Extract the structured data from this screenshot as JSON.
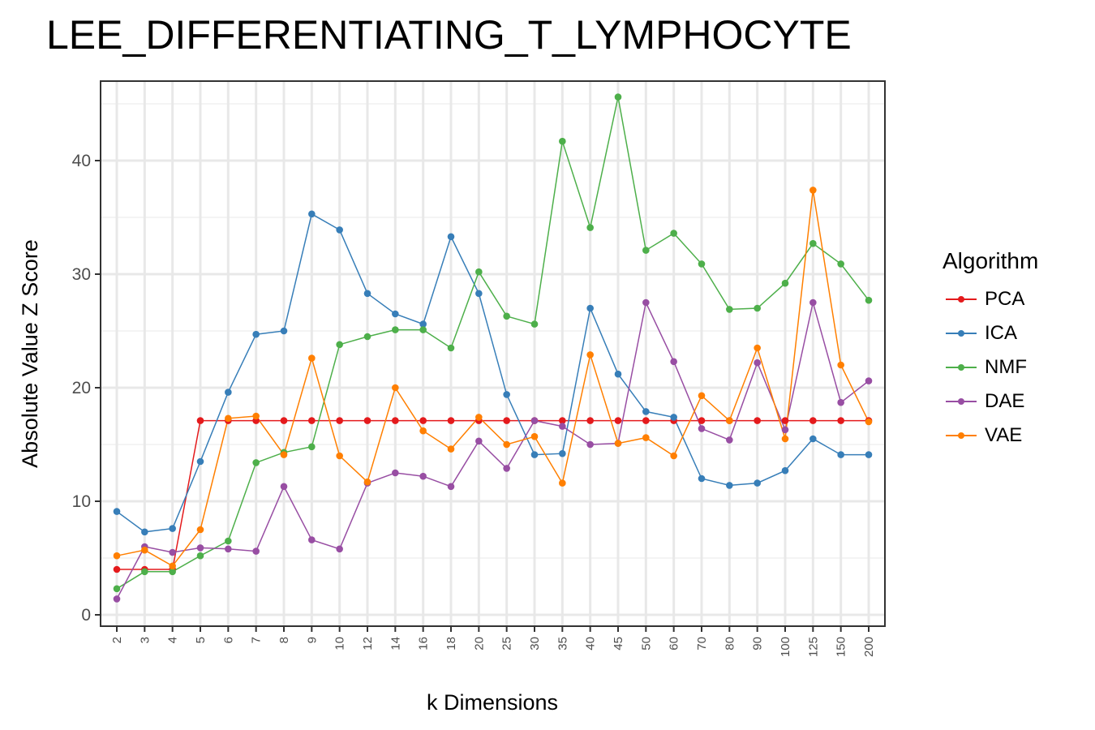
{
  "chart_data": {
    "type": "line",
    "title": "LEE_DIFFERENTIATING_T_LYMPHOCYTE",
    "xlabel": "k Dimensions",
    "ylabel": "Absolute Value Z Score",
    "categories": [
      "2",
      "3",
      "4",
      "5",
      "6",
      "7",
      "8",
      "9",
      "10",
      "12",
      "14",
      "16",
      "18",
      "20",
      "25",
      "30",
      "35",
      "40",
      "45",
      "50",
      "60",
      "70",
      "80",
      "90",
      "100",
      "125",
      "150",
      "200"
    ],
    "ylim": [
      -1,
      47
    ],
    "yticks": [
      0,
      10,
      20,
      30,
      40
    ],
    "grid": true,
    "legend_title": "Algorithm",
    "legend_position": "right",
    "series": [
      {
        "name": "PCA",
        "color": "#E41A1C",
        "values": [
          4.0,
          4.0,
          4.0,
          17.1,
          17.1,
          17.1,
          17.1,
          17.1,
          17.1,
          17.1,
          17.1,
          17.1,
          17.1,
          17.1,
          17.1,
          17.1,
          17.1,
          17.1,
          17.1,
          17.1,
          17.1,
          17.1,
          17.1,
          17.1,
          17.1,
          17.1,
          17.1,
          17.1
        ]
      },
      {
        "name": "ICA",
        "color": "#377EB8",
        "values": [
          9.1,
          7.3,
          7.6,
          13.5,
          19.6,
          24.7,
          25.0,
          35.3,
          33.9,
          28.3,
          26.5,
          25.6,
          33.3,
          28.3,
          19.4,
          14.1,
          14.2,
          27.0,
          21.2,
          17.9,
          17.4,
          12.0,
          11.4,
          11.6,
          12.7,
          15.5,
          14.1,
          14.1
        ]
      },
      {
        "name": "NMF",
        "color": "#4DAF4A",
        "values": [
          2.3,
          3.8,
          3.8,
          5.2,
          6.5,
          13.4,
          14.3,
          14.8,
          23.8,
          24.5,
          25.1,
          25.1,
          23.5,
          30.2,
          26.3,
          25.6,
          41.7,
          34.1,
          45.6,
          32.1,
          33.6,
          30.9,
          26.9,
          27.0,
          29.2,
          32.7,
          30.9,
          27.7
        ]
      },
      {
        "name": "DAE",
        "color": "#984EA3",
        "values": [
          1.4,
          6.0,
          5.5,
          5.9,
          5.8,
          5.6,
          11.3,
          6.6,
          5.8,
          11.6,
          12.5,
          12.2,
          11.3,
          15.3,
          12.9,
          17.1,
          16.6,
          15.0,
          15.1,
          27.5,
          22.3,
          16.4,
          15.4,
          22.2,
          16.3,
          27.5,
          18.7,
          20.6
        ]
      },
      {
        "name": "VAE",
        "color": "#FF7F00",
        "values": [
          5.2,
          5.7,
          4.3,
          7.5,
          17.3,
          17.5,
          14.1,
          22.6,
          14.0,
          11.7,
          20.0,
          16.2,
          14.6,
          17.4,
          15.0,
          15.7,
          11.6,
          22.9,
          15.1,
          15.6,
          14.0,
          19.3,
          17.1,
          23.5,
          15.5,
          37.4,
          22.0,
          17.0
        ]
      }
    ]
  }
}
